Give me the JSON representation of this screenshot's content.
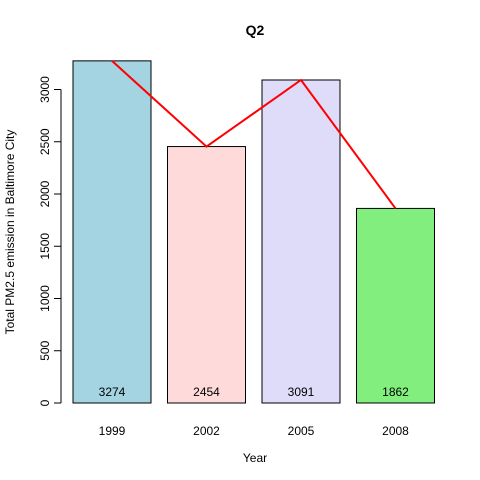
{
  "chart_data": {
    "type": "bar",
    "title": "Q2",
    "xlabel": "Year",
    "ylabel": "Total PM2.5 emission in Baltimore City",
    "categories": [
      "1999",
      "2002",
      "2005",
      "2008"
    ],
    "values": [
      3274,
      2454,
      3091,
      1862
    ],
    "bar_colors": [
      "#a4d3e1",
      "#ffdada",
      "#dedcf9",
      "#81ee7d"
    ],
    "line_color": "#ff0000",
    "yticks": [
      0,
      500,
      1000,
      1500,
      2000,
      2500,
      3000
    ],
    "ylim": [
      0,
      3300
    ],
    "grid": false,
    "overlay_line": true
  }
}
